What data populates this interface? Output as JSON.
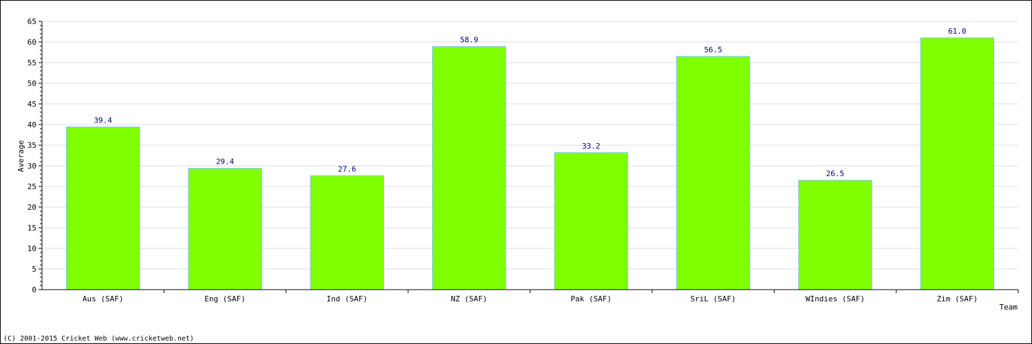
{
  "chart_data": {
    "type": "bar",
    "categories": [
      "Aus (SAF)",
      "Eng (SAF)",
      "Ind (SAF)",
      "NZ (SAF)",
      "Pak (SAF)",
      "SriL (SAF)",
      "WIndies (SAF)",
      "Zim (SAF)"
    ],
    "values": [
      39.4,
      29.4,
      27.6,
      58.9,
      33.2,
      56.5,
      26.5,
      61.0
    ],
    "value_labels": [
      "39.4",
      "29.4",
      "27.6",
      "58.9",
      "33.2",
      "56.5",
      "26.5",
      "61.0"
    ],
    "xlabel": "Team",
    "ylabel": "Average",
    "ylim": [
      0,
      65
    ],
    "yticks": [
      0,
      5,
      10,
      15,
      20,
      25,
      30,
      35,
      40,
      45,
      50,
      55,
      60,
      65
    ],
    "grid": true,
    "bar_color": "#80ff00",
    "bar_edge_color": "#80c0ff",
    "value_label_color": "#000080"
  },
  "footer": {
    "copyright": "(C) 2001-2015 Cricket Web (www.cricketweb.net)"
  }
}
